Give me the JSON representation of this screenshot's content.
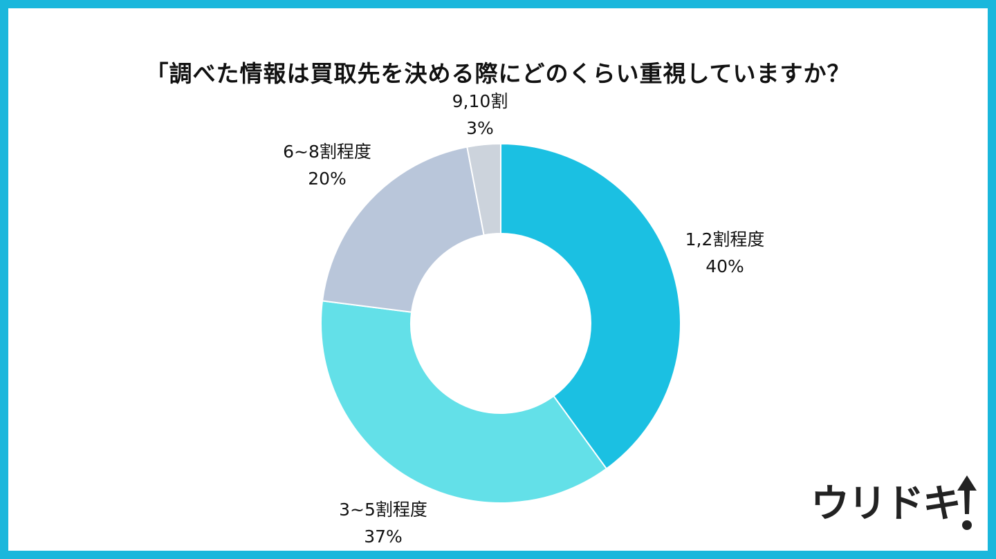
{
  "chart_data": {
    "type": "pie",
    "title": "「調べた情報は買取先を決める際にどのくらい重視していますか？",
    "donut": true,
    "slices": [
      {
        "label": "1,2割程度",
        "value": 40,
        "value_label": "40%",
        "color": "#1bc0e2"
      },
      {
        "label": "3~5割程度",
        "value": 37,
        "value_label": "37%",
        "color": "#63e0e8"
      },
      {
        "label": "6~8割程度",
        "value": 20,
        "value_label": "20%",
        "color": "#b9c6da"
      },
      {
        "label": "9,10割",
        "value": 3,
        "value_label": "3%",
        "color": "#ccd3dc"
      }
    ]
  },
  "branding": {
    "logo_text": "ウリドキ",
    "logo_color": "#222222"
  },
  "frame_color": "#1ab7dc"
}
